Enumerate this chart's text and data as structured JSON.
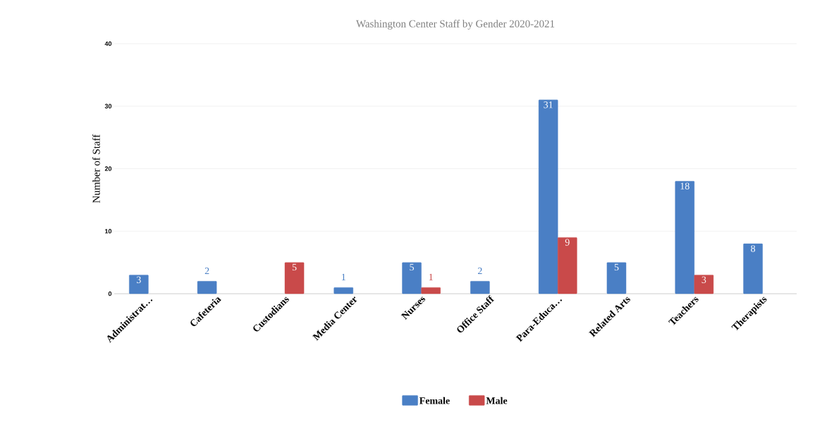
{
  "chart_data": {
    "type": "bar",
    "title": "Washington Center Staff by Gender 2020-2021",
    "ylabel": "Number of Staff",
    "categories": [
      "Administrat…",
      "Cafeteria",
      "Custodians",
      "Media Center",
      "Nurses",
      "Office Staff",
      "Para-Educa…",
      "Related Arts",
      "Teachers",
      "Therapists"
    ],
    "series": [
      {
        "name": "Female",
        "color": "#4a7fc5",
        "values": [
          3,
          2,
          null,
          1,
          5,
          2,
          31,
          5,
          18,
          8
        ]
      },
      {
        "name": "Male",
        "color": "#c94a4a",
        "values": [
          null,
          null,
          5,
          null,
          1,
          null,
          9,
          null,
          3,
          null
        ]
      }
    ],
    "ylim": [
      0,
      40
    ],
    "yticks": [
      0,
      10,
      20,
      30,
      40
    ],
    "grid": "y",
    "legend": "bottom",
    "data_labels": true
  }
}
